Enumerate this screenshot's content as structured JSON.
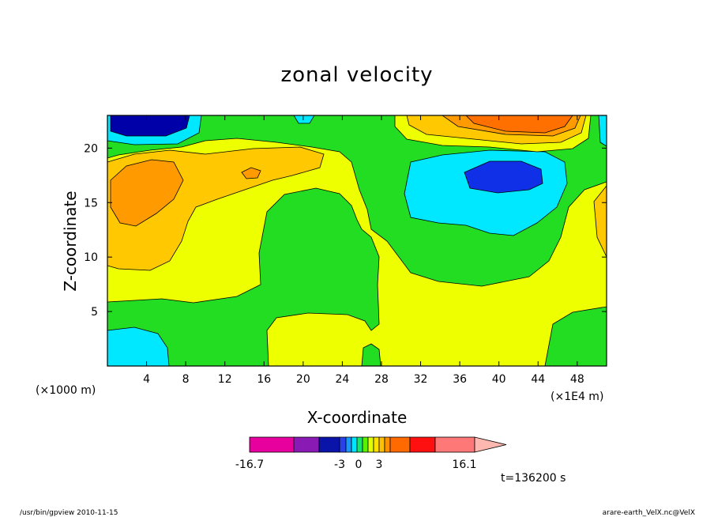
{
  "chart_data": {
    "type": "heatmap",
    "title": "zonal velocity",
    "xlabel": "X-coordinate",
    "ylabel": "Z-coordinate",
    "x_unit": "(×1E4 m)",
    "y_unit": "(×1000 m)",
    "xlim": [
      0,
      51
    ],
    "ylim": [
      0,
      23
    ],
    "x_ticks": [
      "4",
      "8",
      "12",
      "16",
      "20",
      "24",
      "28",
      "32",
      "36",
      "40",
      "44",
      "48"
    ],
    "y_ticks": [
      "5",
      "10",
      "15",
      "20"
    ],
    "grid": false,
    "fill_colors": {
      "strong_negative": "#0000a8",
      "blue": "#1030e8",
      "cyan": "#00e8ff",
      "green": "#22dd22",
      "yellow": "#eeff00",
      "gold": "#ffc800",
      "orange": "#ff9a00",
      "dark_orange": "#ff7000"
    },
    "colorbar": {
      "min_label": "-16.7",
      "max_label": "16.1",
      "mid_labels": [
        "-3",
        "0",
        "3"
      ],
      "colors": [
        "#e8009e",
        "#8a1ab4",
        "#0a14a8",
        "#2a40e8",
        "#1898ff",
        "#00e4ff",
        "#10e870",
        "#5af000",
        "#e0ff00",
        "#ffe000",
        "#ffc000",
        "#ff9000",
        "#ff6a00",
        "#ff1010",
        "#ff7878"
      ],
      "extension_color": "#ffb8b0"
    },
    "time_label": "t=136200 s"
  },
  "footer": {
    "left": "/usr/bin/gpview  2010-11-15",
    "right": "arare-earth_VelX.nc@VelX"
  }
}
